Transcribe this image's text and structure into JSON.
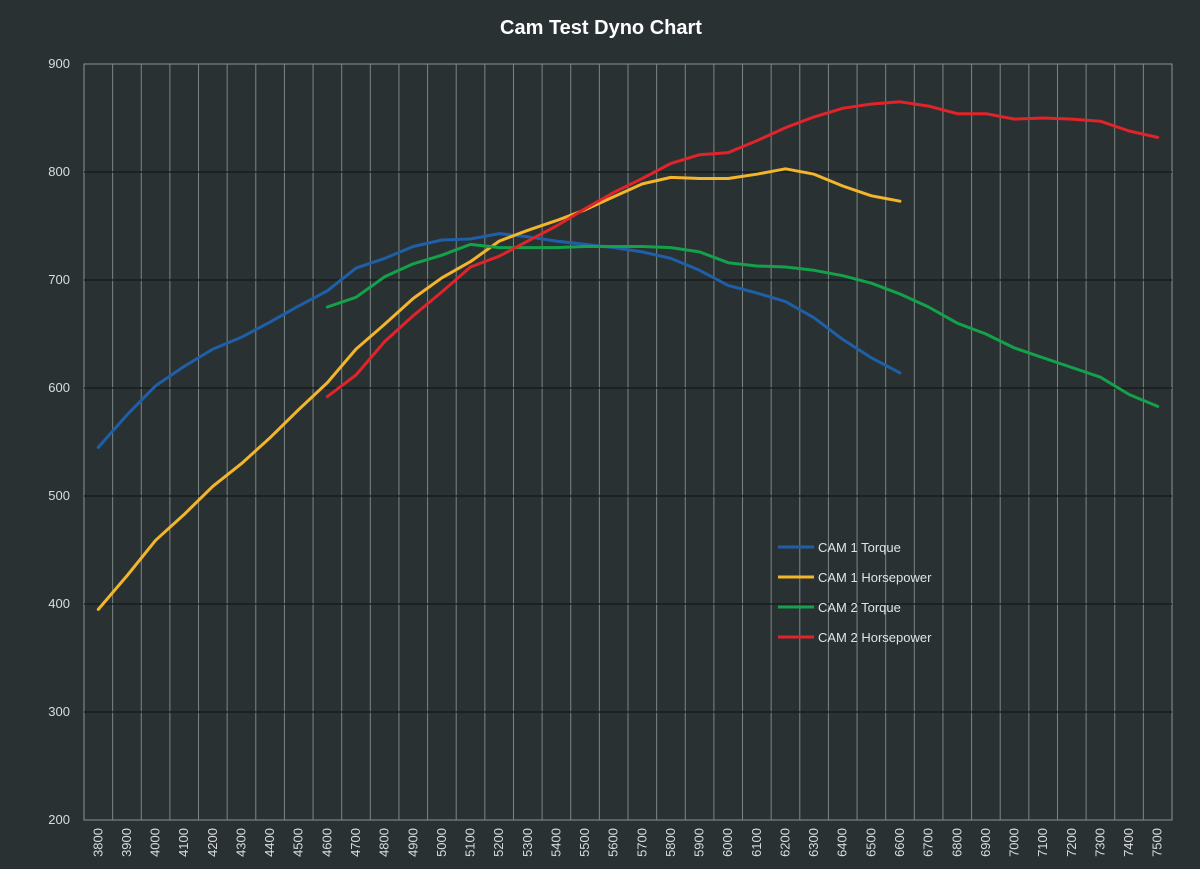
{
  "chart_data": {
    "type": "line",
    "title": "Cam Test Dyno Chart",
    "xlabel": "",
    "ylabel": "",
    "ylim": [
      200,
      900
    ],
    "yticks": [
      200,
      300,
      400,
      500,
      600,
      700,
      800,
      900
    ],
    "categories": [
      3800,
      3900,
      4000,
      4100,
      4200,
      4300,
      4400,
      4500,
      4600,
      4700,
      4800,
      4900,
      5000,
      5100,
      5200,
      5300,
      5400,
      5500,
      5600,
      5700,
      5800,
      5900,
      6000,
      6100,
      6200,
      6300,
      6400,
      6500,
      6600,
      6700,
      6800,
      6900,
      7000,
      7100,
      7200,
      7300,
      7400,
      7500
    ],
    "grid": "vertical-and-horizontal",
    "legend_position": "center-right",
    "series": [
      {
        "name": "CAM 1 Torque",
        "color": "#1f5fa8",
        "values": [
          545,
          575,
          602,
          620,
          636,
          647,
          661,
          676,
          690,
          711,
          720,
          731,
          737,
          738,
          743,
          740,
          736,
          733,
          730,
          726,
          720,
          709,
          695,
          688,
          680,
          665,
          645,
          628,
          614,
          null,
          null,
          null,
          null,
          null,
          null,
          null,
          null,
          null
        ]
      },
      {
        "name": "CAM 1 Horsepower",
        "color": "#f3b52b",
        "values": [
          395,
          426,
          459,
          483,
          509,
          530,
          554,
          580,
          605,
          636,
          659,
          683,
          702,
          717,
          736,
          746,
          755,
          765,
          777,
          789,
          795,
          794,
          794,
          798,
          803,
          798,
          787,
          778,
          773,
          null,
          null,
          null,
          null,
          null,
          null,
          null,
          null,
          null
        ]
      },
      {
        "name": "CAM 2 Torque",
        "color": "#13a14a",
        "values": [
          null,
          null,
          null,
          null,
          null,
          null,
          null,
          null,
          675,
          684,
          703,
          715,
          723,
          733,
          730,
          730,
          730,
          731,
          731,
          731,
          730,
          726,
          716,
          713,
          712,
          709,
          704,
          697,
          687,
          675,
          660,
          650,
          637,
          628,
          619,
          610,
          594,
          583
        ]
      },
      {
        "name": "CAM 2 Horsepower",
        "color": "#e0242a",
        "values": [
          null,
          null,
          null,
          null,
          null,
          null,
          null,
          null,
          592,
          612,
          643,
          667,
          689,
          712,
          722,
          736,
          750,
          766,
          781,
          794,
          808,
          816,
          818,
          829,
          841,
          851,
          859,
          863,
          865,
          861,
          854,
          854,
          849,
          850,
          849,
          847,
          838,
          832
        ]
      }
    ]
  }
}
